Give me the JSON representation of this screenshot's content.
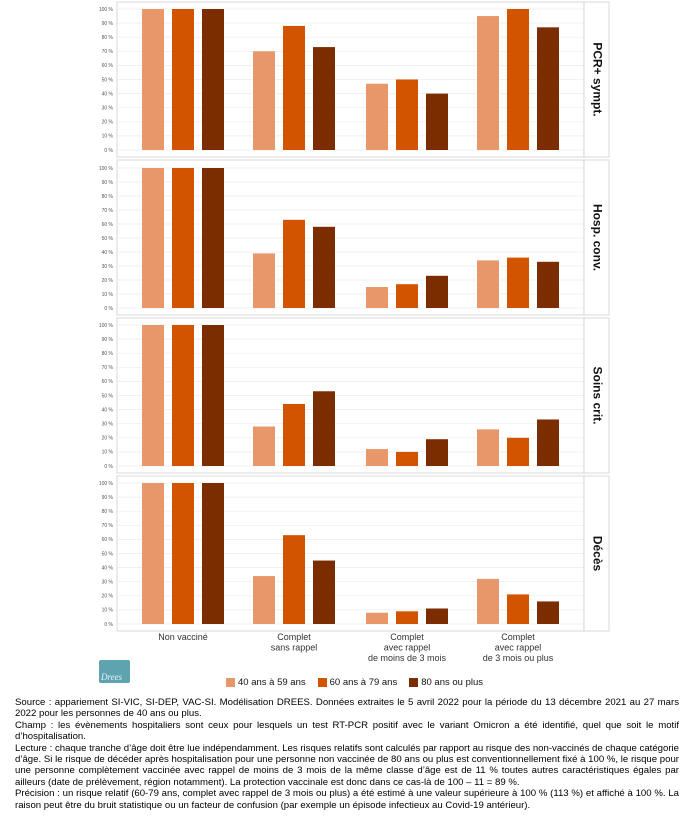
{
  "chart_data": {
    "type": "bar",
    "categories": [
      "Non vacciné",
      "Complet\nsans rappel",
      "Complet\navec rappel\nde moins de 3 mois",
      "Complet\navec rappel\nde 3 mois ou plus"
    ],
    "series_names": [
      "40 ans à 59 ans",
      "60 ans à 79 ans",
      "80 ans ou plus"
    ],
    "colors": [
      "#e8976b",
      "#d35400",
      "#7b2d00"
    ],
    "yticks": [
      "0 %",
      "10 %",
      "20 %",
      "30 %",
      "40 %",
      "50 %",
      "60 %",
      "70 %",
      "80 %",
      "90 %",
      "100 %"
    ],
    "ylim": [
      0,
      100
    ],
    "legend_position": "bottom",
    "panels": [
      {
        "label": "PCR+ sympt.",
        "values": [
          [
            100,
            100,
            100
          ],
          [
            70,
            88,
            73
          ],
          [
            47,
            50,
            40
          ],
          [
            95,
            100,
            87
          ]
        ]
      },
      {
        "label": "Hosp. conv.",
        "values": [
          [
            100,
            100,
            100
          ],
          [
            39,
            63,
            58
          ],
          [
            15,
            17,
            23
          ],
          [
            34,
            36,
            33
          ]
        ]
      },
      {
        "label": "Soins crit.",
        "values": [
          [
            100,
            100,
            100
          ],
          [
            28,
            44,
            53
          ],
          [
            12,
            10,
            19
          ],
          [
            26,
            20,
            33
          ]
        ]
      },
      {
        "label": "Décès",
        "values": [
          [
            100,
            100,
            100
          ],
          [
            34,
            63,
            45
          ],
          [
            8,
            9,
            11
          ],
          [
            32,
            21,
            16
          ]
        ]
      }
    ]
  },
  "logo_text": "Drees",
  "notes": {
    "source": "Source : appariement SI-VIC, SI-DEP, VAC-SI. Modélisation DREES. Données extraites le 5 avril 2022 pour la période du 13 décembre 2021 au 27 mars 2022 pour les personnes de 40 ans ou plus.",
    "champ": "Champ : les évènements hospitaliers sont ceux pour lesquels un test RT-PCR positif avec le variant Omicron a été identifié, quel que soit le motif d’hospitalisation.",
    "lecture": "Lecture : chaque tranche d’âge doit être lue indépendamment. Les risques relatifs sont calculés par rapport au risque des non-vaccinés de chaque catégorie d’âge. Si le risque de décéder après hospitalisation pour une personne non vaccinée de 80 ans ou plus est conventionnellement fixé à 100 %, le risque pour une personne complètement vaccinée avec rappel de moins de 3 mois de la même classe d’âge est de 11 % toutes autres caractéristiques égales par ailleurs (date de prélèvement, région notamment). La protection vaccinale est donc dans ce cas-là de 100 – 11 = 89 %.",
    "precision": "Précision : un risque relatif (60-79 ans, complet avec rappel de 3 mois ou plus) a été estimé à une valeur supérieure à 100 % (113 %) et affiché à 100 %. La raison peut être du bruit statistique ou un facteur de confusion (par exemple un épisode infectieux au Covid-19 antérieur)."
  }
}
